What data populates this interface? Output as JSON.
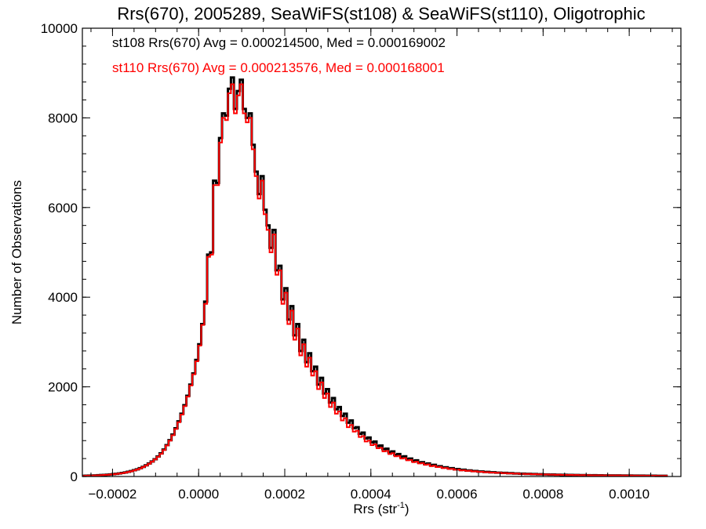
{
  "chart_data": {
    "type": "histogram",
    "title": "Rrs(670), 2005289, SeaWiFS(st108) & SeaWiFS(st110), Oligotrophic",
    "xlabel": "Rrs (str",
    "xlabel_sup": "-1",
    "xlabel_end": ")",
    "ylabel": "Number of Observations",
    "xlim": [
      -0.00027,
      0.00112
    ],
    "ylim": [
      0,
      10000
    ],
    "x_ticks": [
      -0.0002,
      0.0,
      0.0002,
      0.0004,
      0.0006,
      0.0008,
      0.001
    ],
    "x_tick_labels": [
      "-0.0002",
      "0.0000",
      "0.0002",
      "0.0004",
      "0.0006",
      "0.0008",
      "0.0010"
    ],
    "y_ticks": [
      0,
      2000,
      4000,
      6000,
      8000,
      10000
    ],
    "y_tick_labels": [
      "0",
      "2000",
      "4000",
      "6000",
      "8000",
      "10000"
    ],
    "grid": false,
    "legend_position": "top-left",
    "bin_width": 6.9e-06,
    "bin_start": -0.00027,
    "series": [
      {
        "name": "st108",
        "color": "#000000",
        "legend": "st108 Rrs(670) Avg = 0.000214500, Med = 0.000169002",
        "values": [
          15,
          18,
          20,
          22,
          25,
          28,
          32,
          35,
          40,
          45,
          52,
          60,
          68,
          78,
          90,
          105,
          120,
          140,
          160,
          185,
          215,
          250,
          290,
          335,
          385,
          445,
          515,
          600,
          700,
          810,
          935,
          1075,
          1230,
          1400,
          1590,
          1800,
          2050,
          2300,
          2600,
          2950,
          3400,
          3900,
          4950,
          5000,
          6600,
          6550,
          7550,
          8100,
          8050,
          8650,
          8900,
          8200,
          8600,
          8850,
          8200,
          8000,
          8100,
          7400,
          6800,
          6300,
          6700,
          5950,
          5600,
          5100,
          5500,
          4600,
          4700,
          3950,
          4200,
          3500,
          3800,
          3150,
          3400,
          2800,
          3050,
          2550,
          2750,
          2350,
          2450,
          2050,
          2200,
          1850,
          1950,
          1650,
          1750,
          1500,
          1550,
          1350,
          1400,
          1200,
          1250,
          1080,
          1100,
          950,
          980,
          850,
          870,
          760,
          780,
          680,
          690,
          610,
          620,
          540,
          560,
          480,
          500,
          440,
          450,
          390,
          400,
          350,
          360,
          310,
          320,
          280,
          290,
          250,
          260,
          220,
          230,
          200,
          205,
          180,
          185,
          160,
          165,
          145,
          150,
          130,
          135,
          120,
          122,
          110,
          112,
          100,
          102,
          92,
          94,
          85,
          86,
          78,
          80,
          72,
          74,
          66,
          68,
          61,
          63,
          57,
          58,
          53,
          54,
          49,
          50,
          45,
          46,
          42,
          43,
          39,
          40,
          36,
          37,
          34,
          35,
          32,
          33,
          30,
          31,
          28,
          29,
          27,
          28,
          25,
          26,
          24,
          25,
          23,
          24,
          22,
          23,
          21,
          22,
          20,
          21,
          19,
          20,
          18,
          19,
          18,
          18,
          17,
          17,
          16,
          16,
          15,
          15
        ]
      },
      {
        "name": "st110",
        "color": "#ff0000",
        "legend": "st110 Rrs(670) Avg = 0.000213576, Med = 0.000168001",
        "values": [
          14,
          17,
          19,
          21,
          24,
          27,
          30,
          34,
          38,
          43,
          50,
          57,
          65,
          75,
          86,
          100,
          115,
          135,
          155,
          180,
          210,
          245,
          285,
          330,
          380,
          440,
          505,
          590,
          690,
          800,
          920,
          1060,
          1210,
          1380,
          1570,
          1780,
          2030,
          2280,
          2570,
          2920,
          3380,
          3850,
          4900,
          4950,
          6500,
          6500,
          7450,
          8000,
          7950,
          8550,
          8750,
          8100,
          8500,
          8750,
          8100,
          7900,
          8000,
          7300,
          6700,
          6200,
          6600,
          5850,
          5500,
          5000,
          5400,
          4500,
          4600,
          3850,
          4100,
          3400,
          3700,
          3050,
          3300,
          2700,
          2950,
          2450,
          2650,
          2250,
          2350,
          1950,
          2100,
          1750,
          1850,
          1550,
          1650,
          1400,
          1450,
          1250,
          1300,
          1100,
          1150,
          1000,
          1020,
          880,
          900,
          780,
          800,
          700,
          720,
          630,
          640,
          560,
          570,
          500,
          520,
          450,
          460,
          400,
          410,
          360,
          370,
          320,
          330,
          290,
          300,
          260,
          270,
          230,
          240,
          210,
          215,
          185,
          190,
          165,
          170,
          150,
          155,
          135,
          140,
          125,
          128,
          113,
          115,
          103,
          105,
          94,
          96,
          87,
          88,
          80,
          82,
          74,
          76,
          68,
          70,
          63,
          65,
          58,
          60,
          54,
          56,
          50,
          52,
          47,
          48,
          44,
          45,
          41,
          42,
          38,
          39,
          35,
          36,
          33,
          34,
          31,
          32,
          29,
          30,
          28,
          29,
          26,
          27,
          25,
          26,
          24,
          25,
          23,
          24,
          22,
          23,
          21,
          22,
          20,
          21,
          19,
          20,
          18,
          19,
          17,
          18,
          17,
          17,
          16,
          16,
          15,
          15
        ]
      }
    ]
  }
}
